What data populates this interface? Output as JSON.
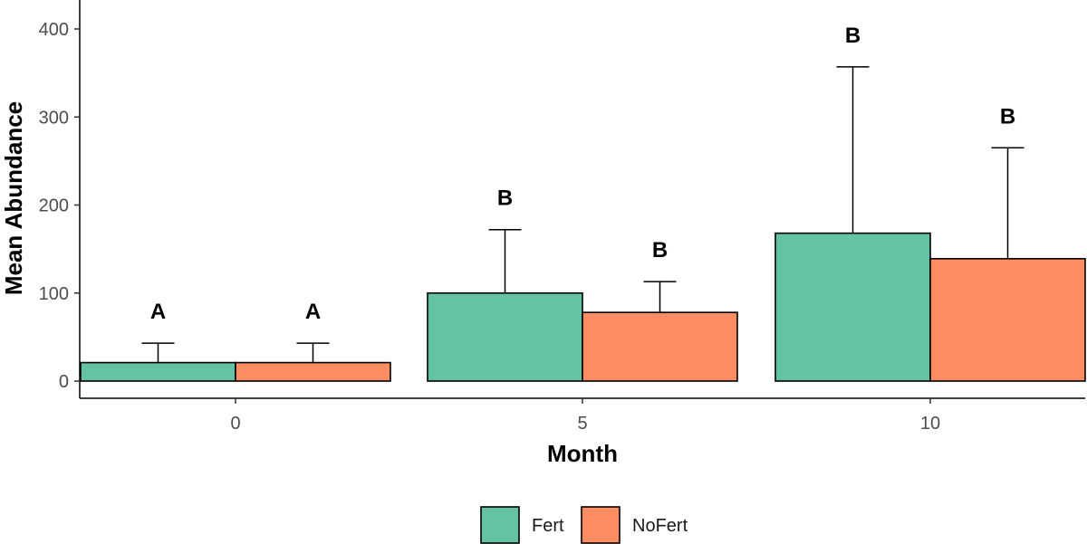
{
  "chart_data": {
    "type": "bar",
    "xlabel": "Month",
    "ylabel": "Mean Abundance",
    "ylim": [
      0,
      400
    ],
    "yticks": [
      0,
      100,
      200,
      300,
      400
    ],
    "categories": [
      "0",
      "5",
      "10"
    ],
    "series": [
      {
        "name": "Fert",
        "color": "#66c2a5",
        "values": [
          21,
          100,
          168
        ],
        "error_upper": [
          43,
          172,
          357
        ],
        "labels": [
          "A",
          "B",
          "B"
        ]
      },
      {
        "name": "NoFert",
        "color": "#fc8d62",
        "values": [
          21,
          78,
          139
        ],
        "error_upper": [
          43,
          113,
          265
        ],
        "labels": [
          "A",
          "B",
          "B"
        ]
      }
    ],
    "legend_position": "bottom",
    "grid": false
  }
}
